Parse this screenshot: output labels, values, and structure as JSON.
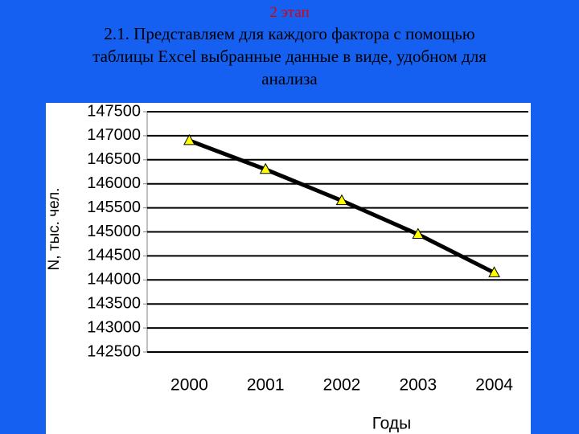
{
  "header": {
    "stage": "2 этап",
    "lines": [
      "2.1. Представляем для каждого фактора с помощью",
      "таблицы Excel выбранные данные в виде, удобном для",
      "анализа"
    ]
  },
  "chart_data": {
    "type": "line",
    "x_label": "Годы",
    "y_label": "N, тыс. чел.",
    "categories": [
      "2000",
      "2001",
      "2002",
      "2003",
      "2004"
    ],
    "values": [
      146900,
      146300,
      145650,
      144950,
      144150
    ],
    "color": "#000000",
    "marker_color": "#ffff00",
    "ylim": [
      142500,
      147500
    ],
    "yticks": [
      142500,
      143000,
      143500,
      144000,
      144500,
      145000,
      145500,
      146000,
      146500,
      147000,
      147500
    ],
    "grid": true
  }
}
